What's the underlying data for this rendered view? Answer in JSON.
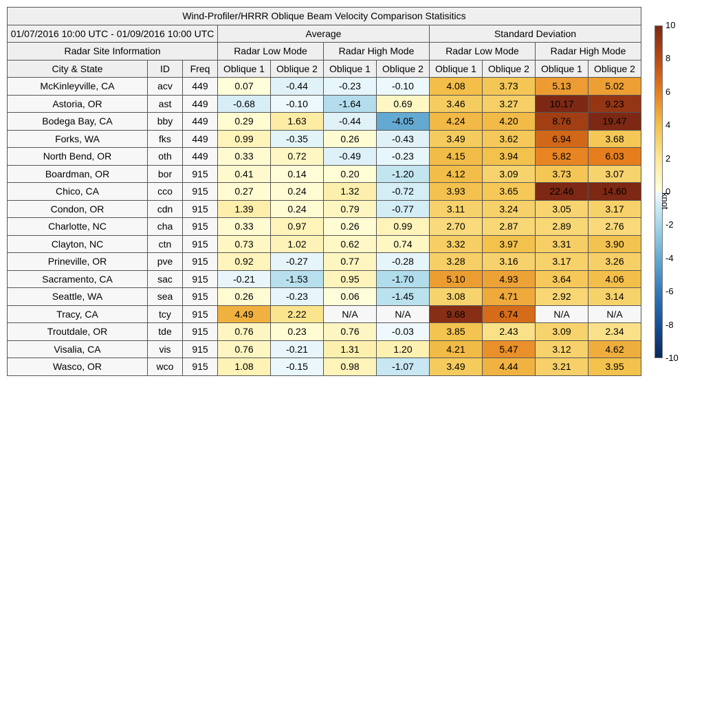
{
  "title": "Wind-Profiler/HRRR Oblique Beam Velocity Comparison Statisitics",
  "date_range": "01/07/2016 10:00 UTC - 01/09/2016 10:00 UTC",
  "group_headers": {
    "average": "Average",
    "std": "Standard Deviation"
  },
  "site_info_header": "Radar Site Information",
  "mode_headers": [
    "Radar Low Mode",
    "Radar High Mode",
    "Radar Low Mode",
    "Radar High Mode"
  ],
  "column_headers": [
    "City & State",
    "ID",
    "Freq",
    "Oblique 1",
    "Oblique 2",
    "Oblique 1",
    "Oblique 2",
    "Oblique 1",
    "Oblique 2",
    "Oblique 1",
    "Oblique 2"
  ],
  "colorbar": {
    "unit": "knot",
    "min": -10,
    "max": 10,
    "ticks": [
      "10",
      "8",
      "6",
      "4",
      "2",
      "0",
      "-2",
      "-4",
      "-6",
      "-8",
      "-10"
    ]
  },
  "chart_data": {
    "type": "table",
    "title": "Wind-Profiler/HRRR Oblique Beam Velocity Comparison Statisitics",
    "rows": [
      {
        "city": "McKinleyville, CA",
        "id": "acv",
        "freq": "449",
        "values": [
          "0.07",
          "-0.44",
          "-0.23",
          "-0.10",
          "4.08",
          "3.73",
          "5.13",
          "5.02"
        ]
      },
      {
        "city": "Astoria, OR",
        "id": "ast",
        "freq": "449",
        "values": [
          "-0.68",
          "-0.10",
          "-1.64",
          "0.69",
          "3.46",
          "3.27",
          "10.17",
          "9.23"
        ]
      },
      {
        "city": "Bodega Bay, CA",
        "id": "bby",
        "freq": "449",
        "values": [
          "0.29",
          "1.63",
          "-0.44",
          "-4.05",
          "4.24",
          "4.20",
          "8.76",
          "19.47"
        ]
      },
      {
        "city": "Forks, WA",
        "id": "fks",
        "freq": "449",
        "values": [
          "0.99",
          "-0.35",
          "0.26",
          "-0.43",
          "3.49",
          "3.62",
          "6.94",
          "3.68"
        ]
      },
      {
        "city": "North Bend, OR",
        "id": "oth",
        "freq": "449",
        "values": [
          "0.33",
          "0.72",
          "-0.49",
          "-0.23",
          "4.15",
          "3.94",
          "5.82",
          "6.03"
        ]
      },
      {
        "city": "Boardman, OR",
        "id": "bor",
        "freq": "915",
        "values": [
          "0.41",
          "0.14",
          "0.20",
          "-1.20",
          "4.12",
          "3.09",
          "3.73",
          "3.07"
        ]
      },
      {
        "city": "Chico, CA",
        "id": "cco",
        "freq": "915",
        "values": [
          "0.27",
          "0.24",
          "1.32",
          "-0.72",
          "3.93",
          "3.65",
          "22.46",
          "14.60"
        ]
      },
      {
        "city": "Condon, OR",
        "id": "cdn",
        "freq": "915",
        "values": [
          "1.39",
          "0.24",
          "0.79",
          "-0.77",
          "3.11",
          "3.24",
          "3.05",
          "3.17"
        ]
      },
      {
        "city": "Charlotte, NC",
        "id": "cha",
        "freq": "915",
        "values": [
          "0.33",
          "0.97",
          "0.26",
          "0.99",
          "2.70",
          "2.87",
          "2.89",
          "2.76"
        ]
      },
      {
        "city": "Clayton, NC",
        "id": "ctn",
        "freq": "915",
        "values": [
          "0.73",
          "1.02",
          "0.62",
          "0.74",
          "3.32",
          "3.97",
          "3.31",
          "3.90"
        ]
      },
      {
        "city": "Prineville, OR",
        "id": "pve",
        "freq": "915",
        "values": [
          "0.92",
          "-0.27",
          "0.77",
          "-0.28",
          "3.28",
          "3.16",
          "3.17",
          "3.26"
        ]
      },
      {
        "city": "Sacramento, CA",
        "id": "sac",
        "freq": "915",
        "values": [
          "-0.21",
          "-1.53",
          "0.95",
          "-1.70",
          "5.10",
          "4.93",
          "3.64",
          "4.06"
        ]
      },
      {
        "city": "Seattle, WA",
        "id": "sea",
        "freq": "915",
        "values": [
          "0.26",
          "-0.23",
          "0.06",
          "-1.45",
          "3.08",
          "4.71",
          "2.92",
          "3.14"
        ]
      },
      {
        "city": "Tracy, CA",
        "id": "tcy",
        "freq": "915",
        "values": [
          "4.49",
          "2.22",
          "N/A",
          "N/A",
          "9.68",
          "6.74",
          "N/A",
          "N/A"
        ]
      },
      {
        "city": "Troutdale, OR",
        "id": "tde",
        "freq": "915",
        "values": [
          "0.76",
          "0.23",
          "0.76",
          "-0.03",
          "3.85",
          "2.43",
          "3.09",
          "2.34"
        ]
      },
      {
        "city": "Visalia, CA",
        "id": "vis",
        "freq": "915",
        "values": [
          "0.76",
          "-0.21",
          "1.31",
          "1.20",
          "4.21",
          "5.47",
          "3.12",
          "4.62"
        ]
      },
      {
        "city": "Wasco, OR",
        "id": "wco",
        "freq": "915",
        "values": [
          "1.08",
          "-0.15",
          "0.98",
          "-1.07",
          "3.49",
          "4.44",
          "3.21",
          "3.95"
        ]
      }
    ]
  }
}
